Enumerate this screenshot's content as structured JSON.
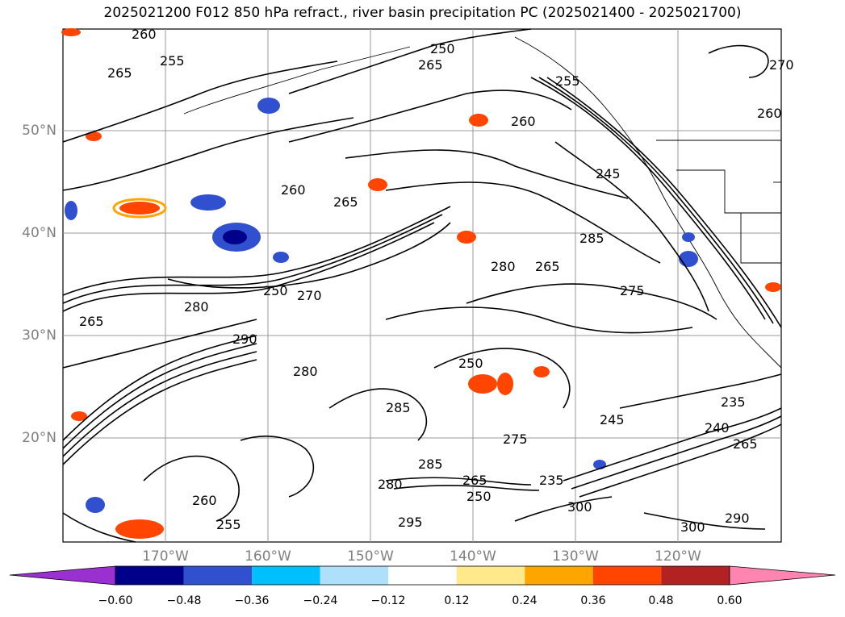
{
  "title": "2025021200 F012 850 hPa refract., river basin precipitation PC (2025021400 - 2025021700)",
  "map": {
    "projection": "cylindrical",
    "lon_range": [
      -180,
      -110
    ],
    "lat_range": [
      10,
      60
    ],
    "gridlines": true,
    "lat_ticks": [
      "50°N",
      "40°N",
      "30°N",
      "20°N"
    ],
    "lon_ticks": [
      "170°W",
      "160°W",
      "150°W",
      "140°W",
      "130°W",
      "120°W"
    ],
    "contour_labels": [
      "260",
      "255",
      "265",
      "250",
      "265",
      "270",
      "260",
      "260",
      "265",
      "245",
      "265",
      "260",
      "285",
      "255",
      "280",
      "275",
      "250",
      "270",
      "280",
      "265",
      "290",
      "250",
      "280",
      "250",
      "245",
      "235",
      "240",
      "265",
      "275",
      "285",
      "265",
      "255",
      "300",
      "295",
      "300",
      "290",
      "280",
      "285",
      "260",
      "235"
    ]
  },
  "colorbar": {
    "tick_labels": [
      "−0.60",
      "−0.48",
      "−0.36",
      "−0.24",
      "−0.12",
      "0.12",
      "0.24",
      "0.36",
      "0.48",
      "0.60"
    ],
    "colors": [
      "#9b30d0",
      "#00008b",
      "#3050d0",
      "#00bfff",
      "#aee0fb",
      "#ffffff",
      "#ffe98a",
      "#ffa500",
      "#ff4500",
      "#b22222",
      "#ff85b0"
    ]
  }
}
